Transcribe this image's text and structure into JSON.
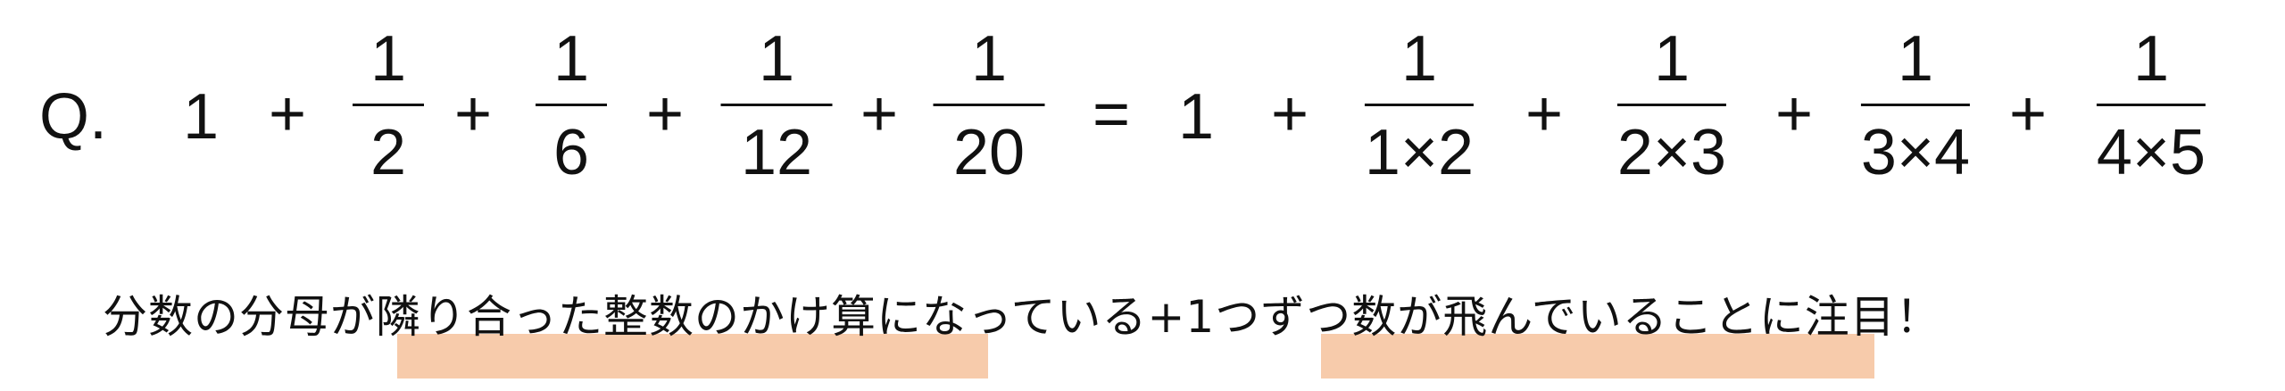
{
  "question_label": "Q.",
  "lhs": {
    "whole": "1",
    "plus": "+",
    "fractions": [
      {
        "num": "1",
        "den": "2"
      },
      {
        "num": "1",
        "den": "6"
      },
      {
        "num": "1",
        "den": "12"
      },
      {
        "num": "1",
        "den": "20"
      }
    ]
  },
  "equals": "=",
  "rhs": {
    "whole": "1",
    "plus": "+",
    "fractions": [
      {
        "num": "1",
        "den": "1×2"
      },
      {
        "num": "1",
        "den": "2×3"
      },
      {
        "num": "1",
        "den": "3×4"
      },
      {
        "num": "1",
        "den": "4×5"
      }
    ]
  },
  "note": "分数の分母が隣り合った整数のかけ算になっている+1つずつ数が飛んでいることに注目！",
  "highlight_color": "#f7cbab"
}
